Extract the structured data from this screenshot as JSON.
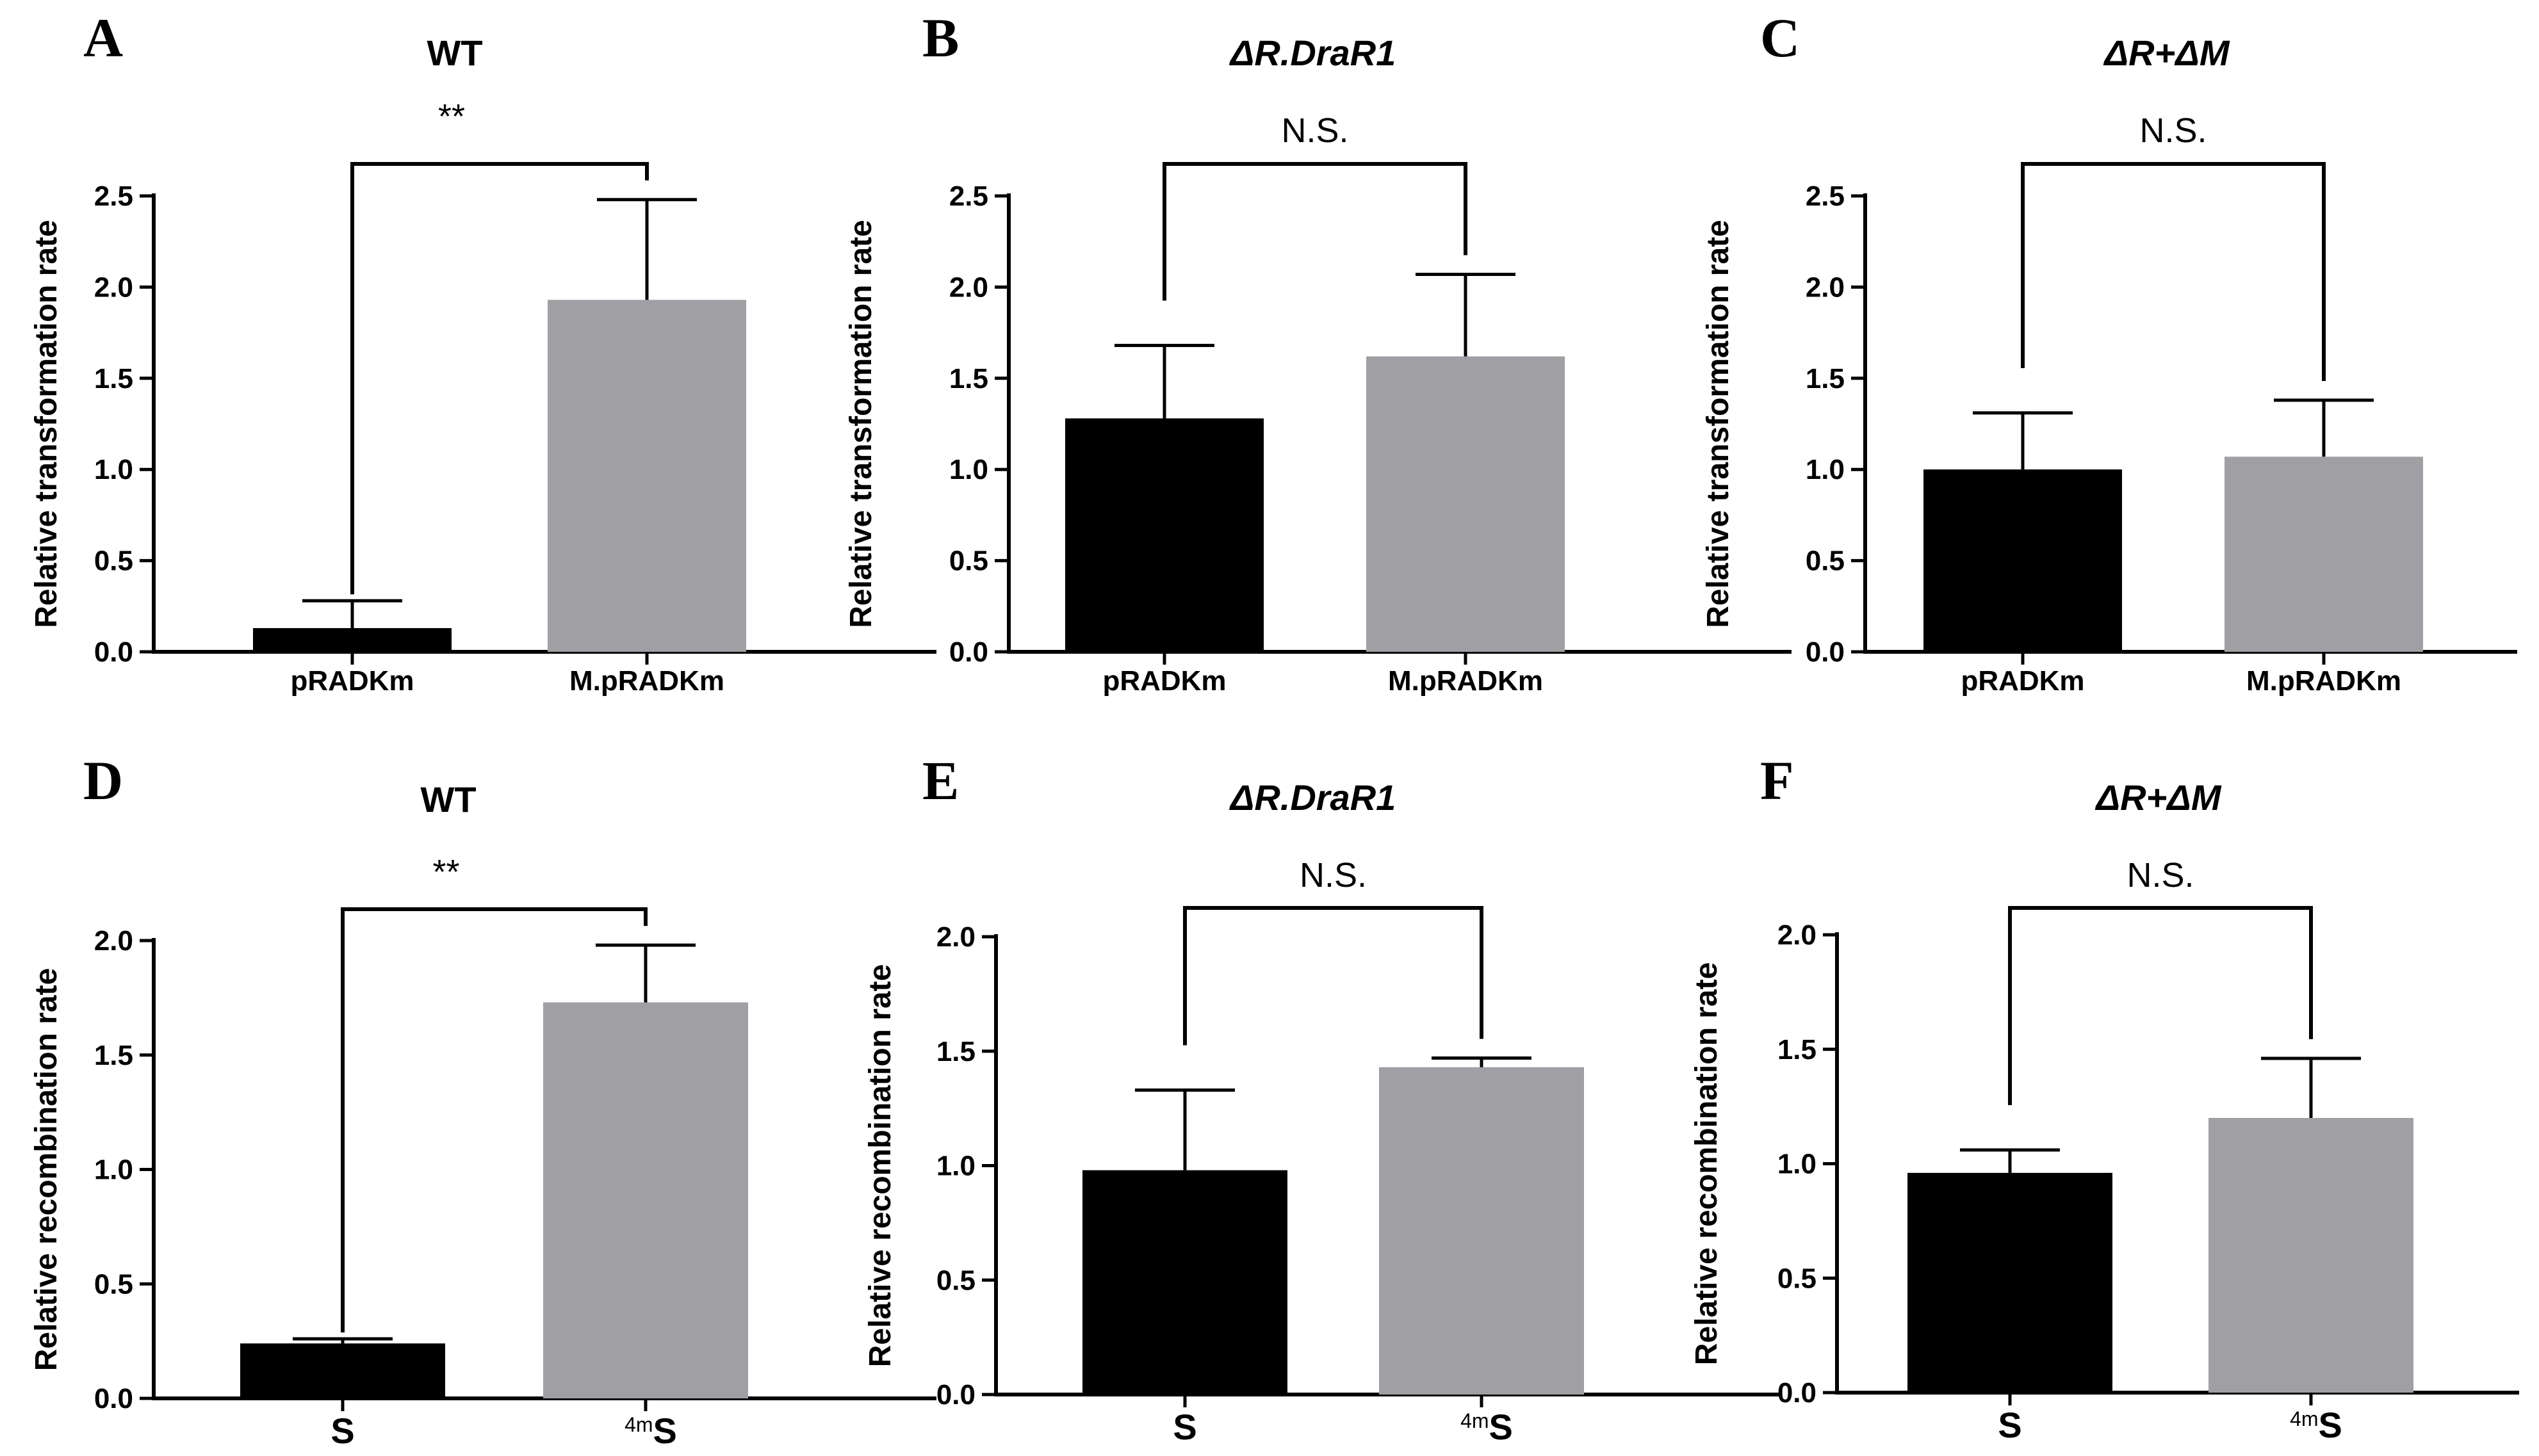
{
  "colors": {
    "bar1": "#000000",
    "bar2": "#a0a0a4",
    "axis": "#000000"
  },
  "chart_data": [
    {
      "panel": "A",
      "title": "WT",
      "title_italic": false,
      "type": "bar",
      "ylabel": "Relative transformation rate",
      "ylim": [
        0,
        2.5
      ],
      "yticks": [
        "0.0",
        "0.5",
        "1.0",
        "1.5",
        "2.0",
        "2.5"
      ],
      "categories": [
        "pRADKm",
        "M.pRADKm"
      ],
      "values": [
        0.13,
        1.93
      ],
      "errors": [
        0.15,
        0.55
      ],
      "significance": "**"
    },
    {
      "panel": "B",
      "title": "ΔR.DraR1",
      "title_italic": true,
      "type": "bar",
      "ylabel": "Relative transformation rate",
      "ylim": [
        0,
        2.5
      ],
      "yticks": [
        "0.0",
        "0.5",
        "1.0",
        "1.5",
        "2.0",
        "2.5"
      ],
      "categories": [
        "pRADKm",
        "M.pRADKm"
      ],
      "values": [
        1.28,
        1.62
      ],
      "errors": [
        0.4,
        0.45
      ],
      "significance": "N.S."
    },
    {
      "panel": "C",
      "title": "ΔR+ΔM",
      "title_italic": true,
      "type": "bar",
      "ylabel": "Relative transformation rate",
      "ylim": [
        0,
        2.5
      ],
      "yticks": [
        "0.0",
        "0.5",
        "1.0",
        "1.5",
        "2.0",
        "2.5"
      ],
      "categories": [
        "pRADKm",
        "M.pRADKm"
      ],
      "values": [
        1.0,
        1.07
      ],
      "errors": [
        0.31,
        0.31
      ],
      "significance": "N.S."
    },
    {
      "panel": "D",
      "title": "WT",
      "title_italic": false,
      "type": "bar",
      "ylabel": "Relative recombination rate",
      "ylim": [
        0,
        2.0
      ],
      "yticks": [
        "0.0",
        "0.5",
        "1.0",
        "1.5",
        "2.0"
      ],
      "categories": [
        "S",
        "4mS"
      ],
      "values": [
        0.24,
        1.73
      ],
      "errors": [
        0.02,
        0.25
      ],
      "significance": "**"
    },
    {
      "panel": "E",
      "title": "ΔR.DraR1",
      "title_italic": true,
      "type": "bar",
      "ylabel": "Relative recombination rate",
      "ylim": [
        0,
        2.0
      ],
      "yticks": [
        "0.0",
        "0.5",
        "1.0",
        "1.5",
        "2.0"
      ],
      "categories": [
        "S",
        "4mS"
      ],
      "values": [
        0.98,
        1.43
      ],
      "errors": [
        0.35,
        0.04
      ],
      "significance": "N.S."
    },
    {
      "panel": "F",
      "title": "ΔR+ΔM",
      "title_italic": true,
      "type": "bar",
      "ylabel": "Relative recombination rate",
      "ylim": [
        0,
        2.0
      ],
      "yticks": [
        "0.0",
        "0.5",
        "1.0",
        "1.5",
        "2.0"
      ],
      "categories": [
        "S",
        "4mS"
      ],
      "values": [
        0.96,
        1.2
      ],
      "errors": [
        0.1,
        0.26
      ],
      "significance": "N.S."
    }
  ]
}
